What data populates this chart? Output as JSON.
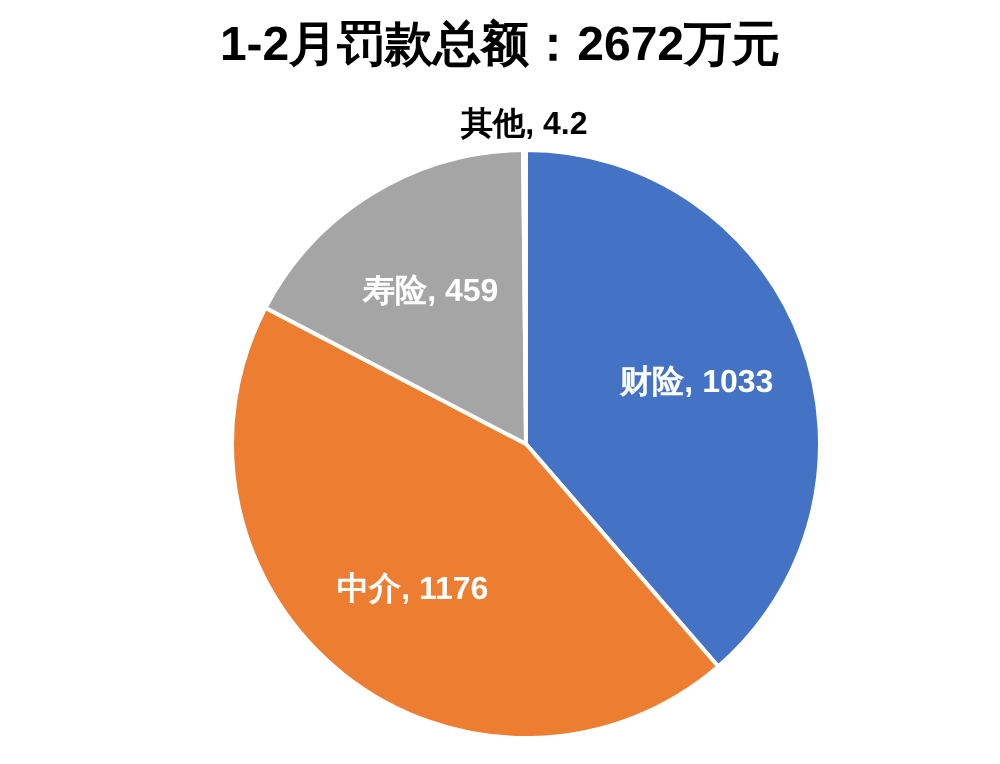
{
  "chart_data": {
    "type": "pie",
    "title": "1-2月罚款总额：2672万元",
    "categories": [
      "财险",
      "中介",
      "寿险",
      "其他"
    ],
    "values": [
      1033,
      1176,
      459,
      4.2
    ],
    "colors": [
      "#4472c4",
      "#ed7d31",
      "#a5a5a5",
      "#ffc000"
    ],
    "value_labels": [
      ", 1033",
      ", 1176",
      ", 459",
      ", 4.2"
    ]
  }
}
